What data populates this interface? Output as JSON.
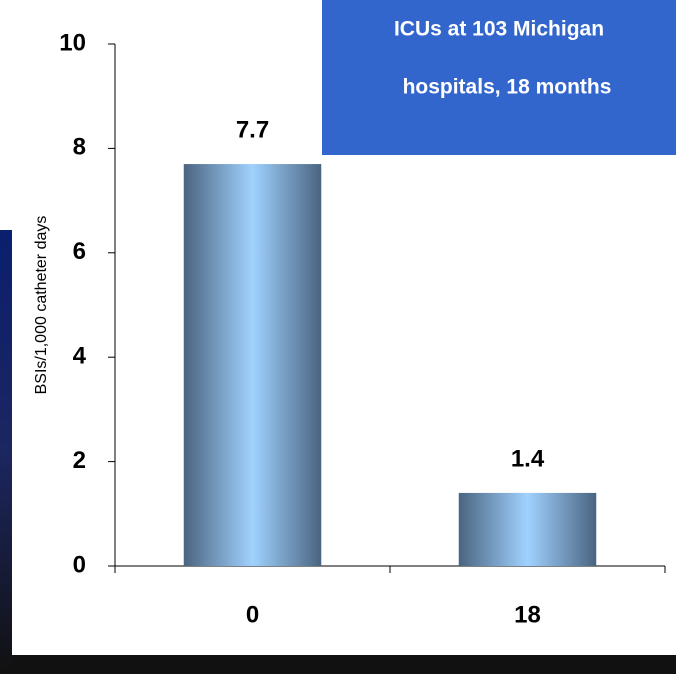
{
  "chart_data": {
    "type": "bar",
    "annotation": [
      "ICUs at 103 Michigan",
      "hospitals, 18 months"
    ],
    "ylabel": "BSIs/1,000 catheter days",
    "categories": [
      "0",
      "18"
    ],
    "values": [
      7.7,
      1.4
    ],
    "ylim": [
      0,
      10
    ],
    "yticks": [
      0,
      2,
      4,
      6,
      8,
      10
    ],
    "colors": [
      "#4a6480",
      "#a0d2ff"
    ],
    "annotation_color": "#3366cc"
  }
}
